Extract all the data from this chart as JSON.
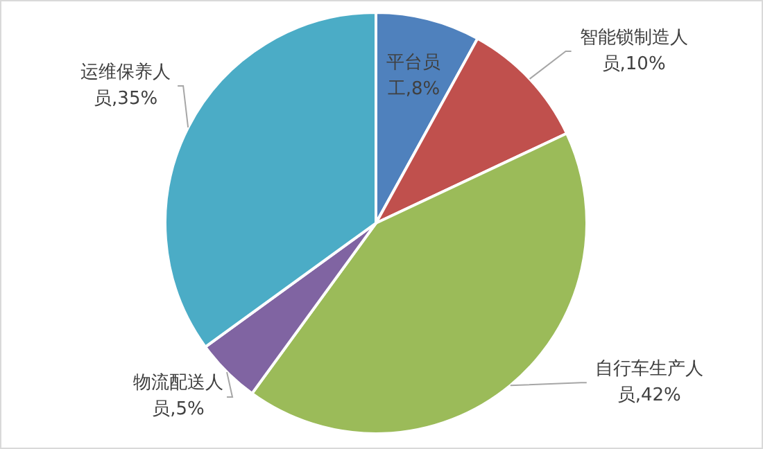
{
  "chart_data": {
    "type": "pie",
    "categories": [
      "平台员工",
      "智能锁制造人员",
      "自行车生产人员",
      "物流配送人员",
      "运维保养人员"
    ],
    "values": [
      8,
      10,
      42,
      5,
      35
    ],
    "value_labels": [
      "8%",
      "10%",
      "42%",
      "5%",
      "35%"
    ],
    "colors": [
      "#4f81bd",
      "#c0504d",
      "#9bbb59",
      "#8064a2",
      "#4bacc6"
    ]
  }
}
